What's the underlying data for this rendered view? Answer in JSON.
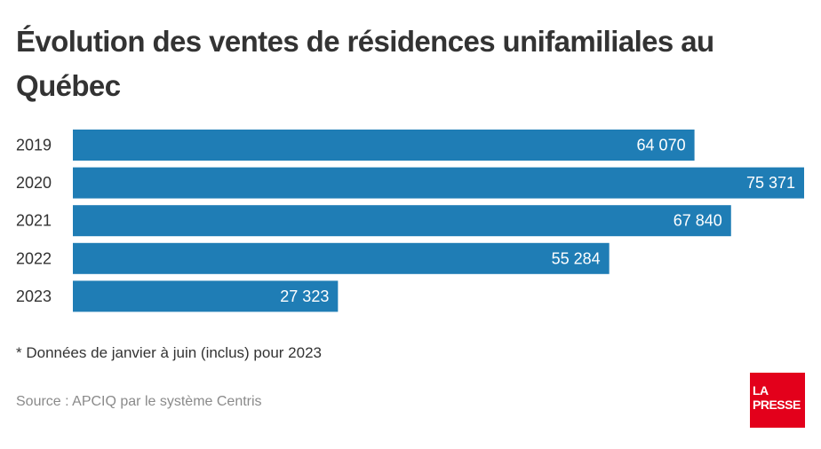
{
  "title": "Évolution des ventes de résidences unifamiliales au Québec",
  "note": "* Données de janvier à juin (inclus) pour 2023",
  "source": "Source : APCIQ par le système Centris",
  "logo": {
    "line1": "LA",
    "line2": "PRESSE",
    "color": "#e3001b"
  },
  "chart_data": {
    "type": "bar",
    "orientation": "horizontal",
    "title": "Évolution des ventes de résidences unifamiliales au Québec",
    "xlabel": "",
    "ylabel": "",
    "categories": [
      "2019",
      "2020",
      "2021",
      "2022",
      "2023"
    ],
    "values": [
      64070,
      75371,
      67840,
      55284,
      27323
    ],
    "value_labels": [
      "64 070",
      "75 371",
      "67 840",
      "55 284",
      "27 323"
    ],
    "xlim": [
      0,
      75371
    ],
    "grid": false,
    "legend": "none",
    "bar_color": "#1f7db5"
  }
}
